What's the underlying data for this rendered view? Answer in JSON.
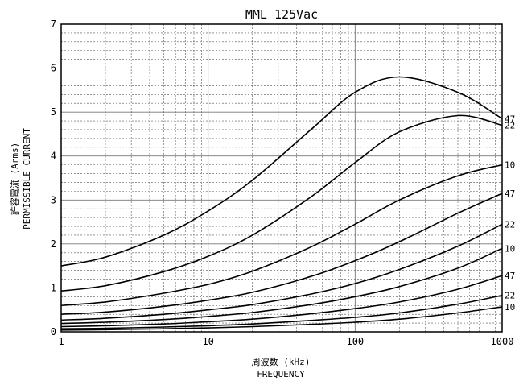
{
  "chart_data": {
    "type": "line",
    "title": "MML 125Vac",
    "xlabel_jp": "周波数 (kHz)",
    "xlabel_en": "FREQUENCY",
    "ylabel_jp": "許容電流 (Arms)",
    "ylabel_en": "PERMISSIBLE CURRENT",
    "x_scale": "log",
    "xlim": [
      1,
      1000
    ],
    "ylim": [
      0,
      7
    ],
    "x_ticks": [
      1,
      10,
      100,
      1000
    ],
    "x_tick_labels": [
      "1",
      "10",
      "100",
      "1000"
    ],
    "y_ticks": [
      0,
      1,
      2,
      3,
      4,
      5,
      6,
      7
    ],
    "y_tick_labels": [
      "0",
      "1",
      "2",
      "3",
      "4",
      "5",
      "6",
      "7"
    ],
    "grid": true,
    "series": [
      {
        "name": "47",
        "x": [
          1,
          2,
          5,
          10,
          20,
          50,
          100,
          200,
          500,
          1000
        ],
        "y": [
          1.5,
          1.7,
          2.2,
          2.75,
          3.45,
          4.6,
          5.45,
          5.8,
          5.45,
          4.85
        ]
      },
      {
        "name": "22",
        "x": [
          1,
          2,
          5,
          10,
          20,
          50,
          100,
          200,
          500,
          1000
        ],
        "y": [
          0.93,
          1.05,
          1.37,
          1.72,
          2.2,
          3.07,
          3.85,
          4.55,
          4.92,
          4.7
        ]
      },
      {
        "name": "10",
        "x": [
          1,
          2,
          5,
          10,
          20,
          50,
          100,
          200,
          500,
          1000
        ],
        "y": [
          0.6,
          0.68,
          0.88,
          1.08,
          1.38,
          1.93,
          2.45,
          3.0,
          3.55,
          3.8
        ]
      },
      {
        "name": "47",
        "x": [
          1,
          2,
          5,
          10,
          20,
          50,
          100,
          200,
          500,
          1000
        ],
        "y": [
          0.4,
          0.45,
          0.58,
          0.72,
          0.9,
          1.26,
          1.62,
          2.05,
          2.7,
          3.15
        ]
      },
      {
        "name": "22",
        "x": [
          1,
          2,
          5,
          10,
          20,
          50,
          100,
          200,
          500,
          1000
        ],
        "y": [
          0.27,
          0.31,
          0.4,
          0.5,
          0.62,
          0.86,
          1.1,
          1.42,
          1.95,
          2.45
        ]
      },
      {
        "name": "10",
        "x": [
          1,
          2,
          5,
          10,
          20,
          50,
          100,
          200,
          500,
          1000
        ],
        "y": [
          0.19,
          0.22,
          0.28,
          0.35,
          0.44,
          0.62,
          0.8,
          1.03,
          1.45,
          1.9
        ]
      },
      {
        "name": "47",
        "x": [
          1,
          2,
          5,
          10,
          20,
          50,
          100,
          200,
          500,
          1000
        ],
        "y": [
          0.12,
          0.14,
          0.18,
          0.23,
          0.29,
          0.41,
          0.53,
          0.68,
          0.97,
          1.28
        ]
      },
      {
        "name": "22",
        "x": [
          1,
          2,
          5,
          10,
          20,
          50,
          100,
          200,
          500,
          1000
        ],
        "y": [
          0.07,
          0.08,
          0.11,
          0.14,
          0.18,
          0.26,
          0.33,
          0.43,
          0.63,
          0.83
        ]
      },
      {
        "name": "10",
        "x": [
          1,
          2,
          5,
          10,
          20,
          50,
          100,
          200,
          500,
          1000
        ],
        "y": [
          0.04,
          0.05,
          0.07,
          0.09,
          0.12,
          0.17,
          0.22,
          0.29,
          0.43,
          0.57
        ]
      }
    ]
  }
}
